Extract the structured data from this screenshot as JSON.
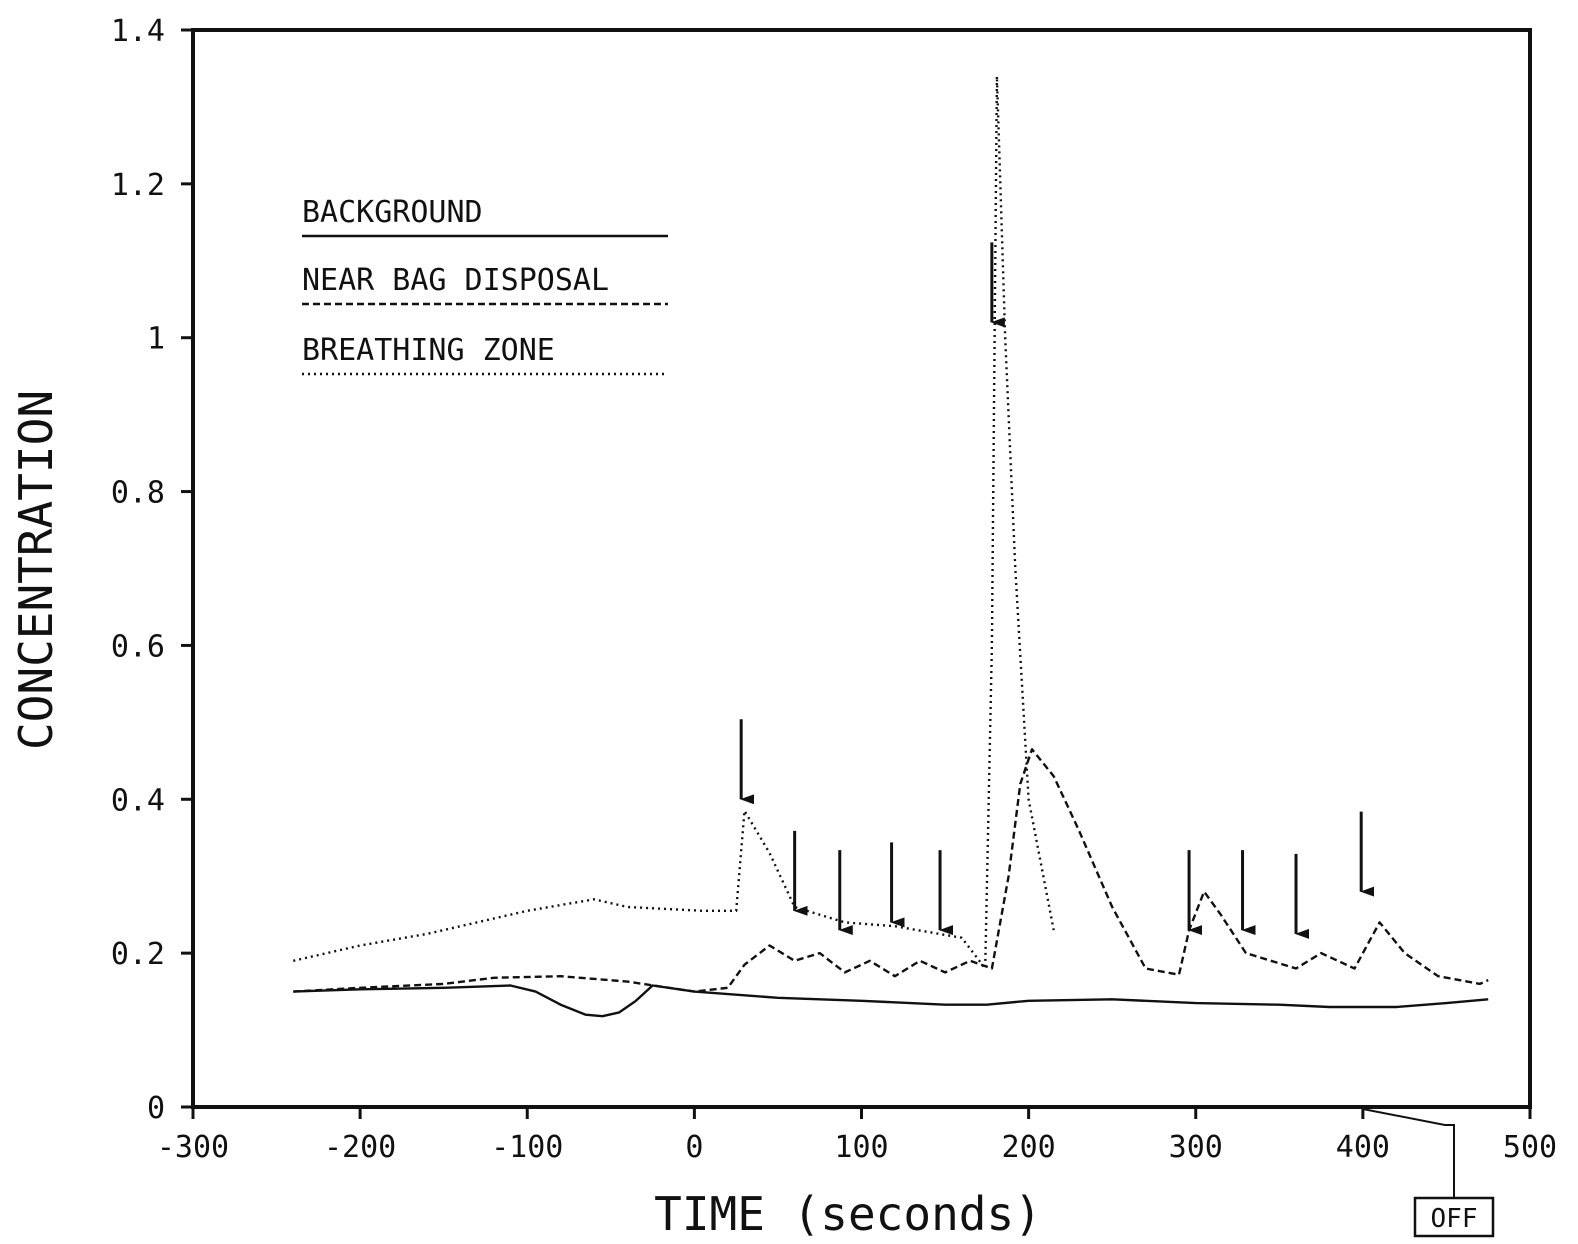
{
  "chart_data": {
    "type": "line",
    "xlabel": "TIME (seconds)",
    "ylabel": "CONCENTRATION",
    "xlim": [
      -300,
      500
    ],
    "ylim": [
      0,
      1.4
    ],
    "x_ticks": [
      -300,
      -200,
      -100,
      0,
      100,
      200,
      300,
      400,
      500
    ],
    "x_tick_labels": [
      "-300",
      "-200",
      "-100",
      "0",
      "100",
      "200",
      "300",
      "400",
      "500"
    ],
    "y_ticks": [
      0,
      0.2,
      0.4,
      0.6,
      0.8,
      1,
      1.2,
      1.4
    ],
    "y_tick_labels": [
      "0",
      "0.2",
      "0.4",
      "0.6",
      "0.8",
      "1",
      "1.2",
      "1.4"
    ],
    "grid": false,
    "legend_placement": "top-left",
    "legend": [
      "BACKGROUND",
      "NEAR BAG DISPOSAL",
      "BREATHING ZONE"
    ],
    "series": [
      {
        "name": "BACKGROUND",
        "style": "solid",
        "x": [
          -240,
          -200,
          -150,
          -110,
          -95,
          -80,
          -65,
          -55,
          -45,
          -35,
          -25,
          0,
          50,
          100,
          150,
          175,
          200,
          250,
          300,
          350,
          380,
          420,
          450,
          475
        ],
        "y": [
          0.15,
          0.153,
          0.155,
          0.158,
          0.15,
          0.133,
          0.12,
          0.118,
          0.123,
          0.138,
          0.158,
          0.15,
          0.142,
          0.138,
          0.133,
          0.133,
          0.138,
          0.14,
          0.135,
          0.133,
          0.13,
          0.13,
          0.135,
          0.14
        ]
      },
      {
        "name": "NEAR BAG DISPOSAL",
        "style": "dashed",
        "x": [
          -240,
          -200,
          -150,
          -120,
          -80,
          -40,
          0,
          20,
          30,
          45,
          60,
          75,
          90,
          105,
          120,
          135,
          150,
          165,
          178,
          188,
          195,
          202,
          215,
          230,
          250,
          270,
          290,
          296,
          305,
          315,
          330,
          345,
          360,
          375,
          395,
          400,
          410,
          425,
          445,
          470,
          475
        ],
        "y": [
          0.15,
          0.155,
          0.16,
          0.168,
          0.17,
          0.163,
          0.15,
          0.155,
          0.185,
          0.21,
          0.19,
          0.2,
          0.175,
          0.19,
          0.17,
          0.19,
          0.175,
          0.19,
          0.18,
          0.3,
          0.42,
          0.465,
          0.43,
          0.36,
          0.26,
          0.18,
          0.172,
          0.23,
          0.28,
          0.25,
          0.2,
          0.19,
          0.18,
          0.2,
          0.18,
          0.2,
          0.24,
          0.2,
          0.17,
          0.16,
          0.165
        ]
      },
      {
        "name": "BREATHING ZONE",
        "style": "dotted",
        "x": [
          -240,
          -200,
          -160,
          -140,
          -120,
          -100,
          -60,
          -40,
          5,
          25,
          30,
          45,
          60,
          90,
          120,
          160,
          174,
          178,
          181,
          186,
          192,
          200,
          215
        ],
        "y": [
          0.19,
          0.21,
          0.225,
          0.235,
          0.245,
          0.255,
          0.27,
          0.26,
          0.255,
          0.255,
          0.385,
          0.33,
          0.26,
          0.24,
          0.235,
          0.22,
          0.18,
          0.6,
          1.34,
          1.0,
          0.7,
          0.4,
          0.23
        ]
      }
    ],
    "annotations": [
      {
        "type": "arrow-down",
        "x": 28,
        "y": 0.4
      },
      {
        "type": "arrow-down",
        "x": 60,
        "y": 0.255
      },
      {
        "type": "arrow-down",
        "x": 87,
        "y": 0.23
      },
      {
        "type": "arrow-down",
        "x": 118,
        "y": 0.24
      },
      {
        "type": "arrow-down",
        "x": 147,
        "y": 0.23
      },
      {
        "type": "arrow-down",
        "x": 178,
        "y": 1.02
      },
      {
        "type": "arrow-down",
        "x": 296,
        "y": 0.23
      },
      {
        "type": "arrow-down",
        "x": 328,
        "y": 0.23
      },
      {
        "type": "arrow-down",
        "x": 360,
        "y": 0.225
      },
      {
        "type": "arrow-down",
        "x": 399,
        "y": 0.28
      },
      {
        "type": "callout",
        "text": "OFF",
        "x": 400,
        "y": 0
      }
    ]
  }
}
